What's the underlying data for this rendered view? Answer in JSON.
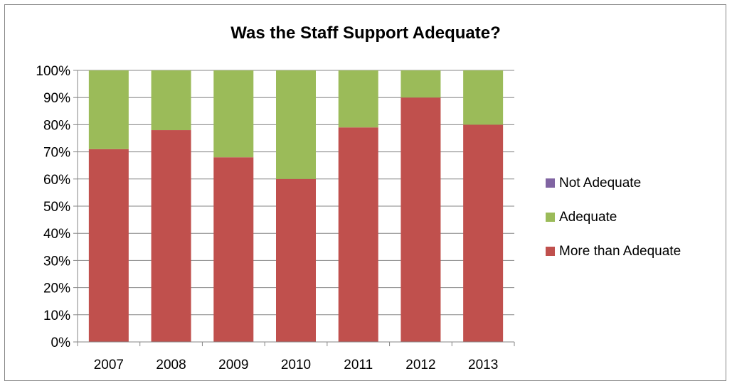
{
  "chart_data": {
    "type": "bar",
    "stacked": true,
    "percent_stacked": true,
    "title": "Was the Staff Support Adequate?",
    "xlabel": "",
    "ylabel": "",
    "categories": [
      "2007",
      "2008",
      "2009",
      "2010",
      "2011",
      "2012",
      "2013"
    ],
    "series": [
      {
        "name": "More than Adequate",
        "color": "#c0504d",
        "values": [
          71,
          78,
          68,
          60,
          79,
          90,
          80
        ]
      },
      {
        "name": "Adequate",
        "color": "#9bbb59",
        "values": [
          29,
          22,
          32,
          40,
          21,
          10,
          20
        ]
      },
      {
        "name": "Not Adequate",
        "color": "#8064a2",
        "values": [
          0,
          0,
          0,
          0,
          0,
          0,
          0
        ]
      }
    ],
    "ylim": [
      0,
      100
    ],
    "yticks": [
      "0%",
      "10%",
      "20%",
      "30%",
      "40%",
      "50%",
      "60%",
      "70%",
      "80%",
      "90%",
      "100%"
    ],
    "ytick_values": [
      0,
      10,
      20,
      30,
      40,
      50,
      60,
      70,
      80,
      90,
      100
    ],
    "grid": true,
    "legend_position": "right",
    "legend_order": [
      "Not Adequate",
      "Adequate",
      "More than Adequate"
    ]
  }
}
